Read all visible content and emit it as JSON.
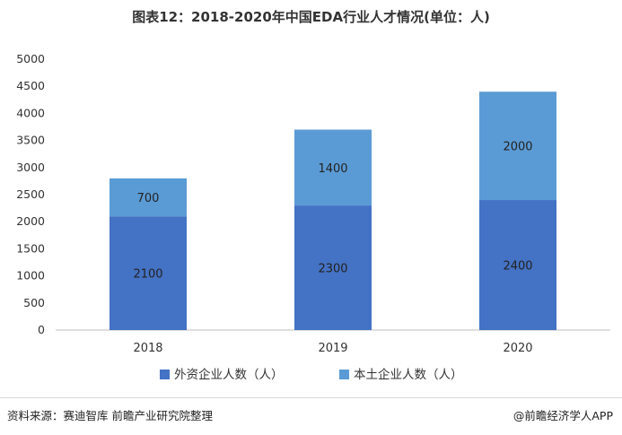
{
  "title": "图表12：2018-2020年中国EDA行业人才情况(单位：人)",
  "chart_data": {
    "type": "bar",
    "stacked": true,
    "categories": [
      "2018",
      "2019",
      "2020"
    ],
    "series": [
      {
        "name": "外资企业人数（人）",
        "values": [
          2100,
          2300,
          2400
        ],
        "color": "#4472c4"
      },
      {
        "name": "本土企业人数（人）",
        "values": [
          700,
          1400,
          2000
        ],
        "color": "#5b9bd5"
      }
    ],
    "ylim": [
      0,
      5000
    ],
    "yticks": [
      0,
      500,
      1000,
      1500,
      2000,
      2500,
      3000,
      3500,
      4000,
      4500,
      5000
    ],
    "grid": false,
    "legend": "bottom"
  },
  "source": "资料来源：赛迪智库 前瞻产业研究院整理",
  "brand": "@前瞻经济学人APP"
}
